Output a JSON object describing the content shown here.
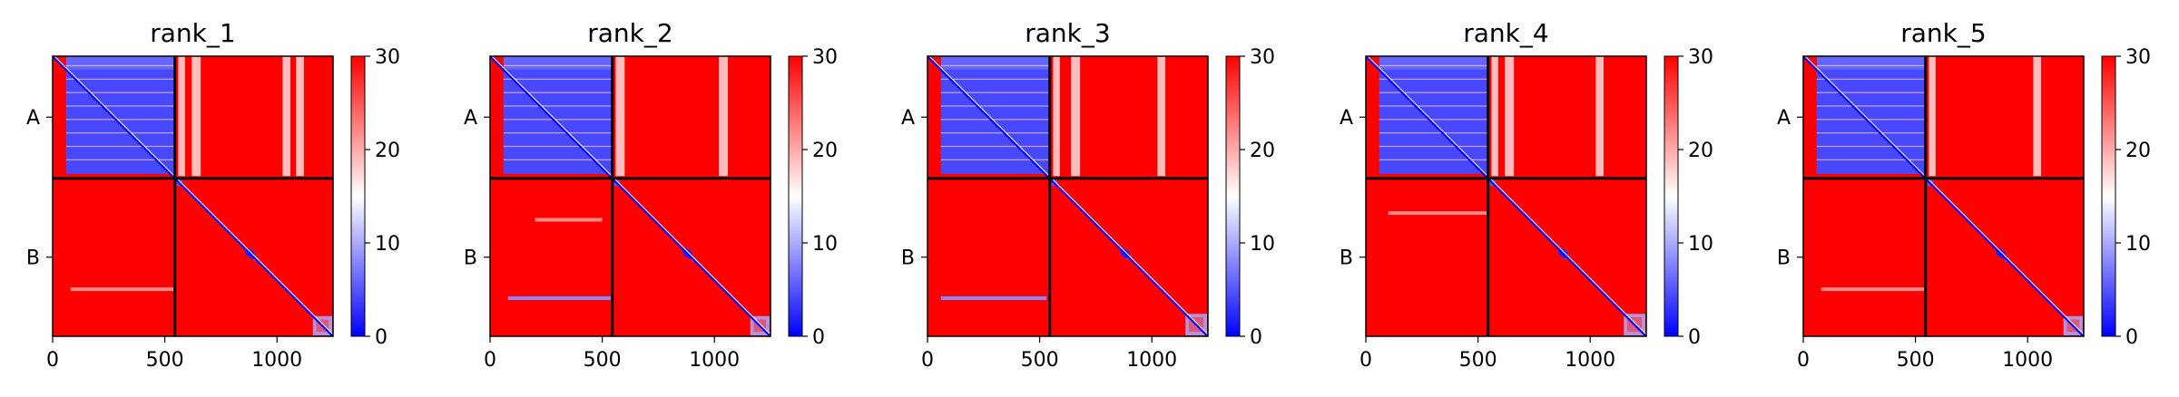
{
  "chart_data": {
    "type": "heatmap",
    "colormap": {
      "name": "bwr",
      "low": "#0000ff",
      "mid": "#ffffff",
      "high": "#ff0000"
    },
    "clim": [
      0,
      30
    ],
    "colorbar_ticks": [
      "0",
      "10",
      "20",
      "30"
    ],
    "chain_boundary": 545,
    "sequence_length": 1250,
    "xlim": [
      0,
      1250
    ],
    "x_ticks": [
      {
        "value": 0,
        "label": "0"
      },
      {
        "value": 500,
        "label": "500"
      },
      {
        "value": 1000,
        "label": "1000"
      }
    ],
    "y_ticks": [
      {
        "value": 272,
        "label": "A"
      },
      {
        "value": 897,
        "label": "B"
      }
    ],
    "panels": [
      {
        "title": "rank_1",
        "chain_a_columns_open": [
          [
            560,
            590
          ],
          [
            620,
            660
          ],
          [
            1025,
            1060
          ],
          [
            1085,
            1120
          ]
        ],
        "domains_b": [
          {
            "from": 545,
            "to": 890,
            "pae": 5
          },
          {
            "from": 890,
            "to": 1150,
            "pae": 5
          },
          {
            "from": 1150,
            "to": 1250,
            "pae": 10
          }
        ],
        "ab_blue_stripes": [
          {
            "row": 1040,
            "from": 80,
            "to": 540,
            "pae": 22
          }
        ]
      },
      {
        "title": "rank_2",
        "chain_a_columns_open": [
          [
            560,
            600
          ],
          [
            1020,
            1060
          ]
        ],
        "domains_b": [
          {
            "from": 545,
            "to": 890,
            "pae": 5
          },
          {
            "from": 890,
            "to": 1150,
            "pae": 5
          },
          {
            "from": 1150,
            "to": 1250,
            "pae": 10
          }
        ],
        "ab_blue_stripes": [
          {
            "row": 1080,
            "from": 80,
            "to": 540,
            "pae": 8
          },
          {
            "row": 730,
            "from": 200,
            "to": 500,
            "pae": 22
          }
        ]
      },
      {
        "title": "rank_3",
        "chain_a_columns_open": [
          [
            560,
            590
          ],
          [
            640,
            680
          ],
          [
            1025,
            1060
          ]
        ],
        "domains_b": [
          {
            "from": 545,
            "to": 880,
            "pae": 5
          },
          {
            "from": 880,
            "to": 1140,
            "pae": 5
          },
          {
            "from": 1140,
            "to": 1250,
            "pae": 10
          }
        ],
        "ab_blue_stripes": [
          {
            "row": 1080,
            "from": 60,
            "to": 530,
            "pae": 8
          }
        ]
      },
      {
        "title": "rank_4",
        "chain_a_columns_open": [
          [
            560,
            590
          ],
          [
            620,
            660
          ],
          [
            1025,
            1060
          ]
        ],
        "domains_b": [
          {
            "from": 545,
            "to": 880,
            "pae": 5
          },
          {
            "from": 880,
            "to": 1140,
            "pae": 5
          },
          {
            "from": 1140,
            "to": 1250,
            "pae": 10
          }
        ],
        "ab_blue_stripes": [
          {
            "row": 700,
            "from": 100,
            "to": 540,
            "pae": 22
          }
        ]
      },
      {
        "title": "rank_5",
        "chain_a_columns_open": [
          [
            560,
            590
          ],
          [
            1025,
            1060
          ]
        ],
        "domains_b": [
          {
            "from": 545,
            "to": 890,
            "pae": 5
          },
          {
            "from": 890,
            "to": 1150,
            "pae": 5
          },
          {
            "from": 1150,
            "to": 1250,
            "pae": 10
          }
        ],
        "ab_blue_stripes": [
          {
            "row": 1040,
            "from": 80,
            "to": 540,
            "pae": 22
          }
        ]
      }
    ]
  }
}
